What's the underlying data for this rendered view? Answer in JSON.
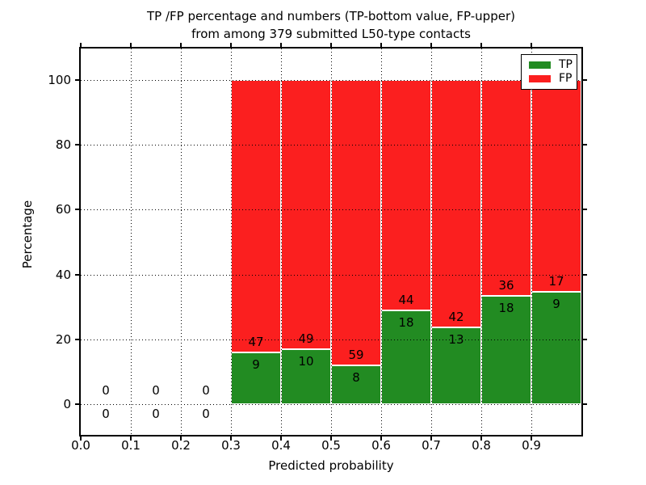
{
  "chart_data": {
    "type": "bar",
    "stacked": true,
    "normalization": "each bin stack scaled to 100 percent; counts printed on bars",
    "title_line1": "TP /FP percentage and numbers (TP-bottom value, FP-upper)",
    "title_line2": "from among 379 submitted L50-type contacts",
    "xlabel": "Predicted probability",
    "ylabel": "Percentage",
    "total_submitted": 379,
    "bin_width": 0.1,
    "bin_starts": [
      0.0,
      0.1,
      0.2,
      0.3,
      0.4,
      0.5,
      0.6,
      0.7,
      0.8,
      0.9
    ],
    "x_tick_labels": [
      "0.0",
      "0.1",
      "0.2",
      "0.3",
      "0.4",
      "0.5",
      "0.6",
      "0.7",
      "0.8",
      "0.9"
    ],
    "y_tick_values": [
      0,
      20,
      40,
      60,
      80,
      100
    ],
    "xlim": [
      0.0,
      1.0
    ],
    "ylim": [
      -9.5,
      109.8
    ],
    "grid": "dotted black, drawn over bars",
    "legend_position": "upper right",
    "series": [
      {
        "name": "TP",
        "color": "#228b22",
        "counts": [
          0,
          0,
          0,
          9,
          10,
          8,
          18,
          13,
          18,
          9
        ]
      },
      {
        "name": "FP",
        "color": "#fb1f1f",
        "counts": [
          0,
          0,
          0,
          47,
          49,
          59,
          44,
          42,
          36,
          17
        ]
      }
    ],
    "bar_edge_color": "#ffffff"
  }
}
